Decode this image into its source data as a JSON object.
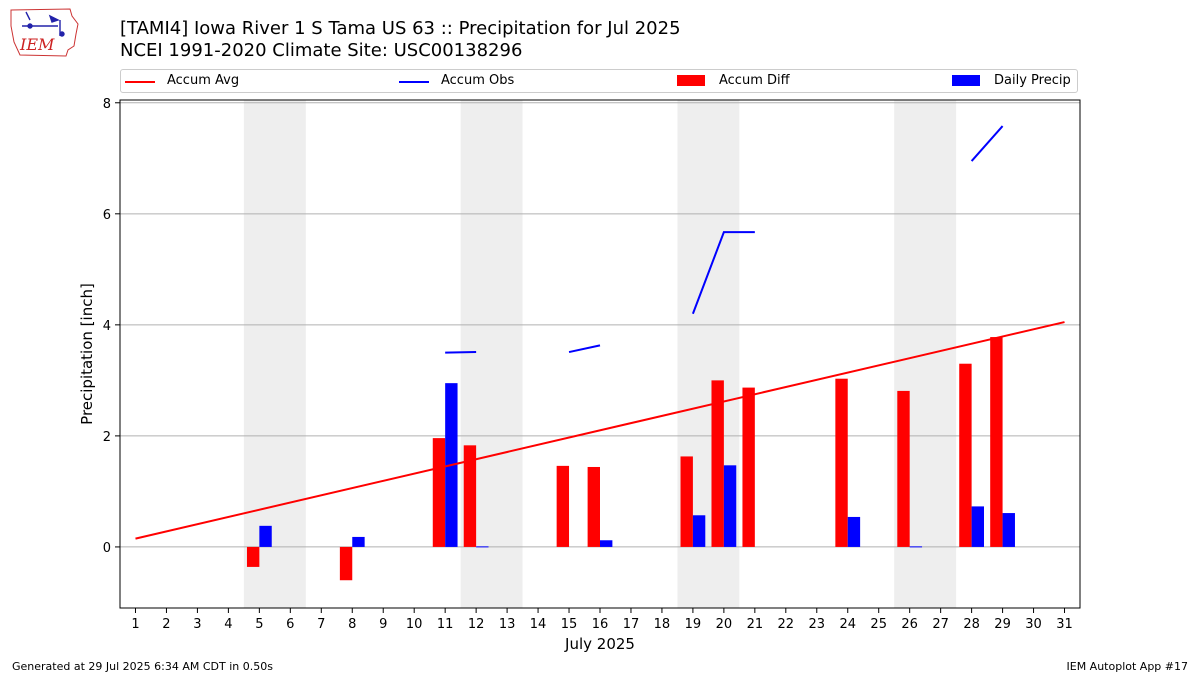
{
  "header": {
    "logo_text": "IEM",
    "title_line1": "[TAMI4] Iowa River 1 S Tama US 63 :: Precipitation for Jul 2025",
    "title_line2": "NCEI 1991-2020 Climate Site: USC00138296"
  },
  "legend": [
    {
      "label": "Accum Avg",
      "kind": "line",
      "color": "#ff0000"
    },
    {
      "label": "Accum Obs",
      "kind": "line",
      "color": "#0000ff"
    },
    {
      "label": "Accum Diff",
      "kind": "box",
      "color": "#ff0000"
    },
    {
      "label": "Daily Precip",
      "kind": "box",
      "color": "#0000ff"
    }
  ],
  "footer": {
    "left": "Generated at 29 Jul 2025 6:34 AM CDT in 0.50s",
    "right": "IEM Autoplot App #17"
  },
  "chart_data": {
    "type": "bar",
    "xlabel": "July 2025",
    "ylabel": "Precipitation [inch]",
    "xlim": [
      0.5,
      31.5
    ],
    "ylim": [
      -1.1,
      8.05
    ],
    "xticks": [
      1,
      2,
      3,
      4,
      5,
      6,
      7,
      8,
      9,
      10,
      11,
      12,
      13,
      14,
      15,
      16,
      17,
      18,
      19,
      20,
      21,
      22,
      23,
      24,
      25,
      26,
      27,
      28,
      29,
      30,
      31
    ],
    "yticks": [
      0,
      2,
      4,
      6,
      8
    ],
    "grid": "horizontal",
    "weekend_shading": [
      [
        4.5,
        6.5
      ],
      [
        11.5,
        13.5
      ],
      [
        18.5,
        20.5
      ],
      [
        25.5,
        27.5
      ]
    ],
    "colors": {
      "avg": "#ff0000",
      "obs": "#0000ff",
      "diff": "#ff0000",
      "daily": "#0000ff",
      "shade": "#eeeeee"
    },
    "accum_avg": {
      "x": [
        1,
        31
      ],
      "y": [
        0.15,
        4.05
      ]
    },
    "accum_obs_segments": [
      {
        "x": [
          11,
          12
        ],
        "y": [
          3.5,
          3.51
        ]
      },
      {
        "x": [
          15,
          16
        ],
        "y": [
          3.51,
          3.63
        ]
      },
      {
        "x": [
          19,
          20,
          21
        ],
        "y": [
          4.2,
          5.67,
          5.67
        ]
      },
      {
        "x": [
          28,
          29
        ],
        "y": [
          6.95,
          7.58
        ]
      }
    ],
    "accum_diff": [
      {
        "day": 5,
        "value": -0.36
      },
      {
        "day": 8,
        "value": -0.6
      },
      {
        "day": 11,
        "value": 1.96
      },
      {
        "day": 12,
        "value": 1.83
      },
      {
        "day": 15,
        "value": 1.46
      },
      {
        "day": 16,
        "value": 1.44
      },
      {
        "day": 19,
        "value": 1.63
      },
      {
        "day": 20,
        "value": 3.0
      },
      {
        "day": 21,
        "value": 2.87
      },
      {
        "day": 24,
        "value": 3.03
      },
      {
        "day": 26,
        "value": 2.81
      },
      {
        "day": 28,
        "value": 3.3
      },
      {
        "day": 29,
        "value": 3.78
      }
    ],
    "daily_precip": [
      {
        "day": 5,
        "value": 0.38
      },
      {
        "day": 8,
        "value": 0.18
      },
      {
        "day": 11,
        "value": 2.95
      },
      {
        "day": 12,
        "value": 0.01
      },
      {
        "day": 16,
        "value": 0.12
      },
      {
        "day": 19,
        "value": 0.57
      },
      {
        "day": 20,
        "value": 1.47
      },
      {
        "day": 24,
        "value": 0.54
      },
      {
        "day": 26,
        "value": 0.01
      },
      {
        "day": 28,
        "value": 0.73
      },
      {
        "day": 29,
        "value": 0.61
      }
    ]
  }
}
